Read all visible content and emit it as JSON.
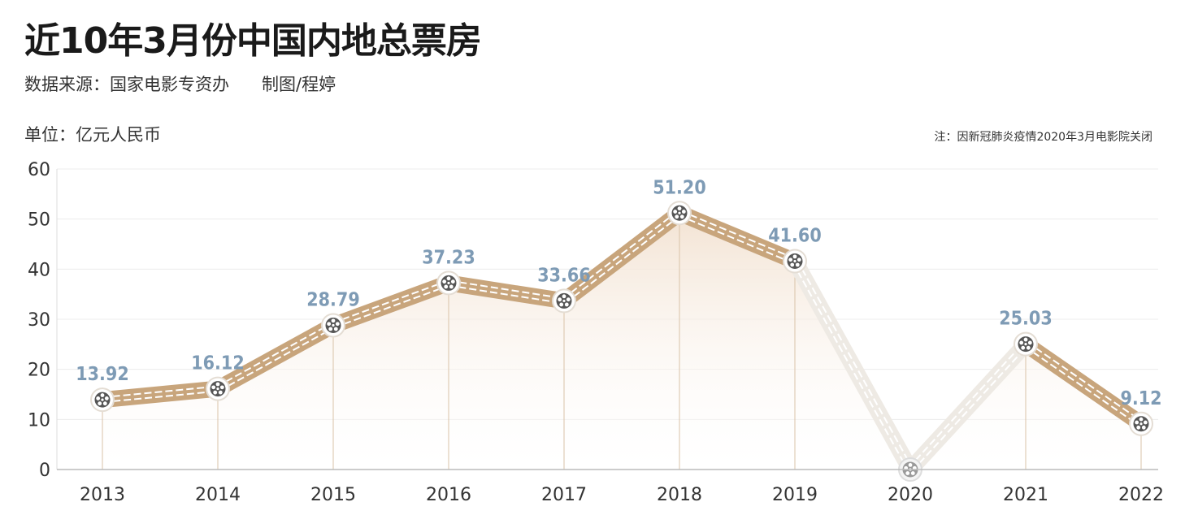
{
  "header": {
    "title": "近10年3月份中国内地总票房",
    "source": "数据来源：国家电影专资办",
    "credit": "制图/程婷",
    "unit": "单位：亿元人民币",
    "note": "注：因新冠肺炎疫情2020年3月电影院关闭"
  },
  "chart_data": {
    "type": "line",
    "categories": [
      "2013",
      "2014",
      "2015",
      "2016",
      "2017",
      "2018",
      "2019",
      "2020",
      "2021",
      "2022"
    ],
    "values": [
      13.92,
      16.12,
      28.79,
      37.23,
      33.66,
      51.2,
      41.6,
      0,
      25.03,
      9.12
    ],
    "value_labels": [
      "13.92",
      "16.12",
      "28.79",
      "37.23",
      "33.66",
      "51.20",
      "41.60",
      "",
      "25.03",
      "9.12"
    ],
    "yticks": [
      "0",
      "10",
      "20",
      "30",
      "40",
      "50",
      "60"
    ],
    "ylim": [
      0,
      60
    ],
    "title": "近10年3月份中国内地总票房",
    "xlabel": "",
    "ylabel": "单位：亿元人民币",
    "grid": true,
    "colors": {
      "film": "#c8a57c",
      "film_faded": "#eeeae4",
      "label": "#7e9bb5",
      "area": "#f3e3d3",
      "grid": "#ececec",
      "stem": "#d9c3a8"
    }
  }
}
